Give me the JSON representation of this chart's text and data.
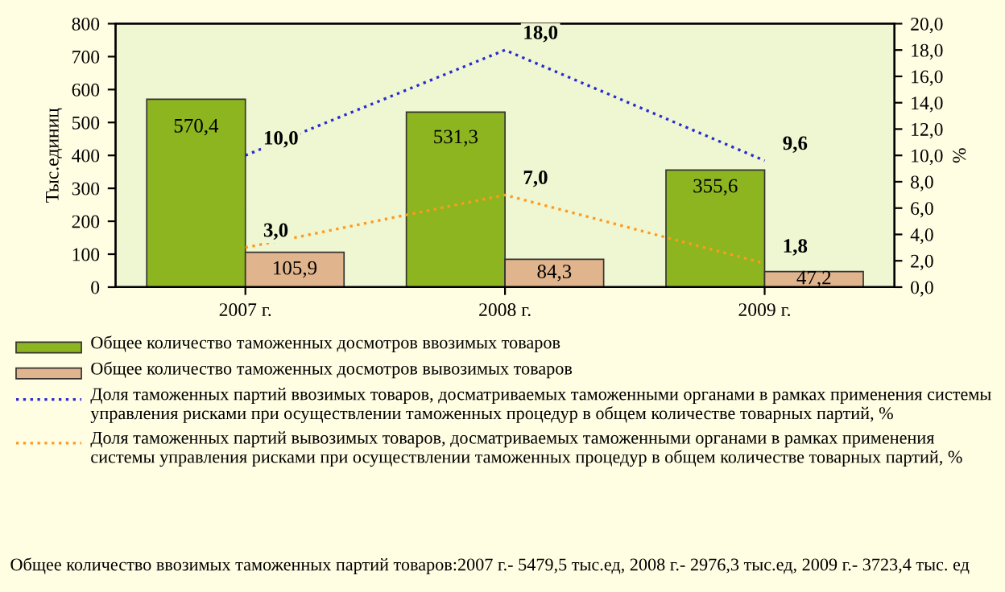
{
  "chart_data": {
    "type": "bar",
    "categories": [
      "2007 г.",
      "2008 г.",
      "2009 г."
    ],
    "ylabel": "Тыс.единиц",
    "y2label": "%",
    "ylim": [
      0,
      800
    ],
    "yticks": [
      0,
      100,
      200,
      300,
      400,
      500,
      600,
      700,
      800
    ],
    "y2lim": [
      0,
      20
    ],
    "y2ticks": [
      {
        "value": 0,
        "label": "0,0"
      },
      {
        "value": 2,
        "label": "2,0"
      },
      {
        "value": 4,
        "label": "4,0"
      },
      {
        "value": 6,
        "label": "6,0"
      },
      {
        "value": 8,
        "label": "8,0"
      },
      {
        "value": 10,
        "label": "10,0"
      },
      {
        "value": 12,
        "label": "12,0"
      },
      {
        "value": 14,
        "label": "14,0"
      },
      {
        "value": 16,
        "label": "16,0"
      },
      {
        "value": 18,
        "label": "18,0"
      },
      {
        "value": 20,
        "label": "20,0"
      }
    ],
    "series": [
      {
        "name": "Общее количество таможенных досмотров ввозимых товаров",
        "color": "#8cb520",
        "values": [
          570.4,
          531.3,
          355.6
        ],
        "value_labels": [
          "570,4",
          "531,3",
          "355,6"
        ]
      },
      {
        "name": "Общее количество таможенных досмотров вывозимых товаров",
        "color": "#e0b48c",
        "values": [
          105.9,
          84.3,
          47.2
        ],
        "value_labels": [
          "105,9",
          "84,3",
          "47,2"
        ]
      },
      {
        "name": "Доля таможенных партий ввозимых товаров, досматриваемых таможенными органами в рамках применения системы управления рисками при осуществлении таможенных процедур в общем количестве товарных партий, %",
        "type": "line",
        "axis": "y2",
        "color": "#2a2ad0",
        "line_style": "dotted",
        "values": [
          10.0,
          18.0,
          9.6
        ],
        "value_labels": [
          "10,0",
          "18,0",
          "9,6"
        ]
      },
      {
        "name": "Доля таможенных партий вывозимых товаров, досматриваемых таможенными органами в рамках применения системы управления рисками при осуществлении таможенных процедур в общем количестве товарных партий, %",
        "type": "line",
        "axis": "y2",
        "color": "#ff9a20",
        "line_style": "dotted",
        "values": [
          3.0,
          7.0,
          1.8
        ],
        "value_labels": [
          "3,0",
          "7,0",
          "1,8"
        ]
      }
    ],
    "legend": "bottom",
    "grid": false,
    "annotations": [
      "Общее количество ввозимых таможенных партий товаров:2007 г.- 5479,5 тыс.ед, 2008 г.- 2976,3 тыс.ед, 2009 г.- 3723,4 тыс. ед"
    ]
  }
}
